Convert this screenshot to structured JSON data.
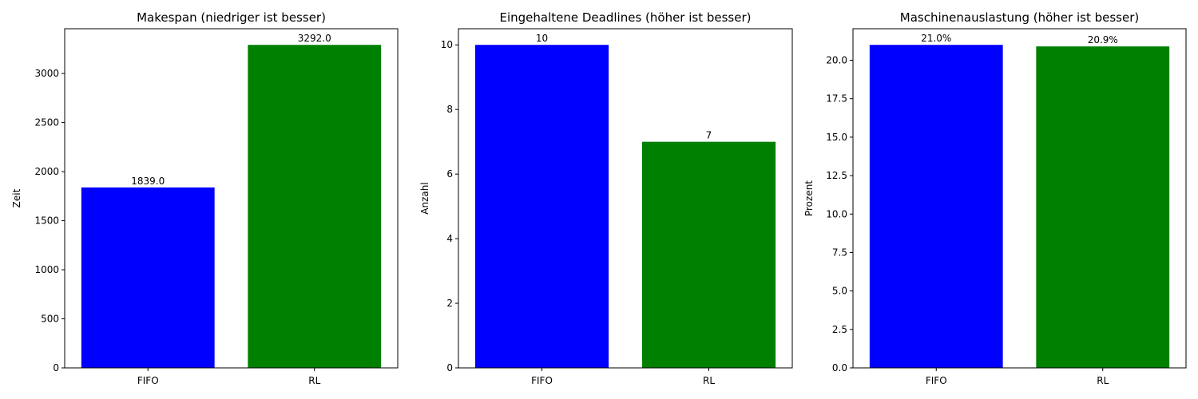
{
  "chart_data": [
    {
      "type": "bar",
      "title": "Makespan (niedriger ist besser)",
      "xlabel": "",
      "ylabel": "Zeit",
      "categories": [
        "FIFO",
        "RL"
      ],
      "values": [
        1839,
        3292
      ],
      "bar_labels": [
        "1839.0",
        "3292.0"
      ],
      "colors": [
        "#0000ff",
        "#008000"
      ],
      "ylim": [
        0,
        3456.6
      ],
      "yticks": [
        0,
        500,
        1000,
        1500,
        2000,
        2500,
        3000
      ],
      "ytick_labels": [
        "0",
        "500",
        "1000",
        "1500",
        "2000",
        "2500",
        "3000"
      ],
      "grid": false,
      "legend": "none"
    },
    {
      "type": "bar",
      "title": "Eingehaltene Deadlines (höher ist besser)",
      "xlabel": "",
      "ylabel": "Anzahl",
      "categories": [
        "FIFO",
        "RL"
      ],
      "values": [
        10,
        7
      ],
      "bar_labels": [
        "10",
        "7"
      ],
      "colors": [
        "#0000ff",
        "#008000"
      ],
      "ylim": [
        0,
        10.5
      ],
      "yticks": [
        0,
        2,
        4,
        6,
        8,
        10
      ],
      "ytick_labels": [
        "0",
        "2",
        "4",
        "6",
        "8",
        "10"
      ],
      "grid": false,
      "legend": "none"
    },
    {
      "type": "bar",
      "title": "Maschinenauslastung (höher ist besser)",
      "xlabel": "",
      "ylabel": "Prozent",
      "categories": [
        "FIFO",
        "RL"
      ],
      "values": [
        21.0,
        20.9
      ],
      "bar_labels": [
        "21.0%",
        "20.9%"
      ],
      "colors": [
        "#0000ff",
        "#008000"
      ],
      "ylim": [
        0,
        22.05
      ],
      "yticks": [
        0,
        2.5,
        5,
        7.5,
        10,
        12.5,
        15,
        17.5,
        20
      ],
      "ytick_labels": [
        "0.0",
        "2.5",
        "5.0",
        "7.5",
        "10.0",
        "12.5",
        "15.0",
        "17.5",
        "20.0"
      ],
      "grid": false,
      "legend": "none"
    }
  ]
}
